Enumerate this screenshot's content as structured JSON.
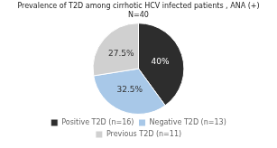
{
  "chart_data": {
    "type": "pie",
    "title": "Prevalence of T2D among cirrhotic HCV infected patients , ANA (+)",
    "subtitle": "N=40",
    "categories": [
      "Positive T2D (n=16)",
      "Negative T2D (n=13)",
      "Previous T2D (n=11)"
    ],
    "values": [
      40.0,
      32.5,
      27.5
    ],
    "value_labels": [
      "40%",
      "32.5%",
      "27.5%"
    ],
    "colors": [
      "#2d2d2d",
      "#a8c8e8",
      "#d0d0d0"
    ],
    "data_labels": true,
    "legend": "bottom"
  }
}
